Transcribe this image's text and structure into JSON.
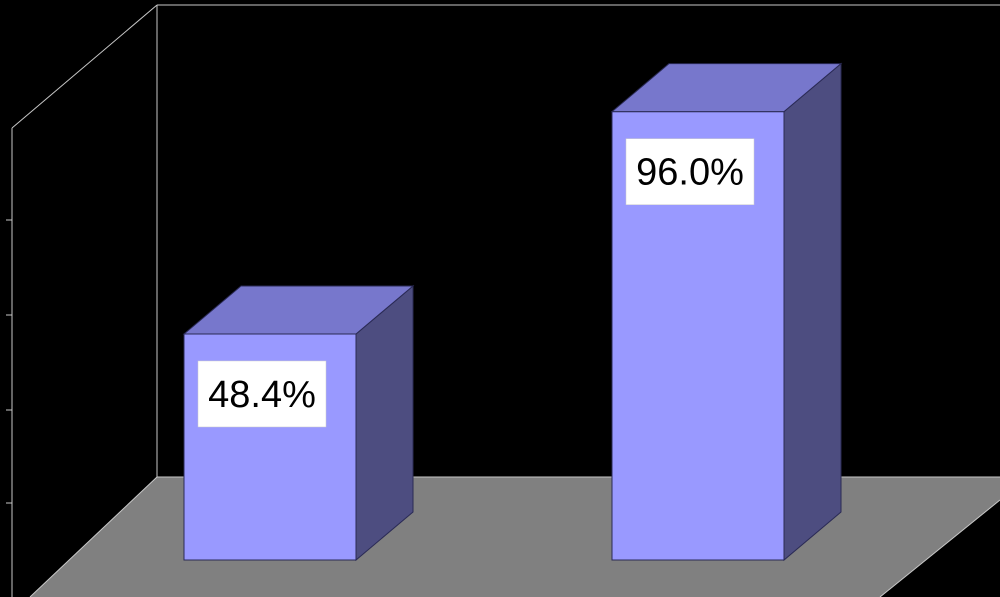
{
  "chart_data": {
    "type": "bar",
    "three_d": true,
    "categories": [
      "",
      ""
    ],
    "series": [
      {
        "values": [
          48.4,
          96.0
        ]
      }
    ],
    "data_labels": [
      "48.4%",
      "96.0%"
    ],
    "ylim": [
      0,
      100
    ],
    "title": "",
    "xlabel": "",
    "ylabel": "",
    "grid": false,
    "legend": "none"
  },
  "colors": {
    "background": "#000000",
    "floor": "#808080",
    "wall_lines": "#c8c8c8",
    "bar_front": "#9999ff",
    "bar_top": "#7777cc",
    "bar_side": "#4d4d80",
    "label_background": "#ffffff"
  }
}
